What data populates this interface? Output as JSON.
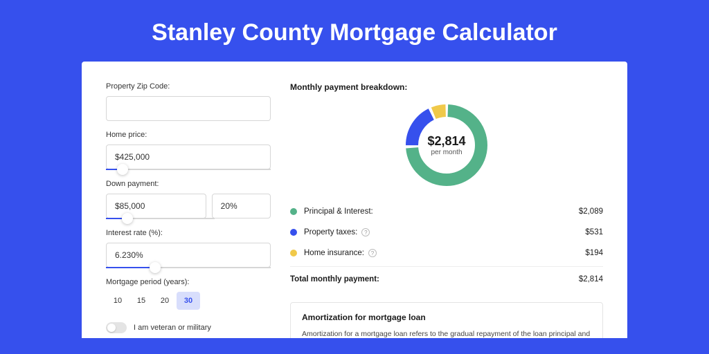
{
  "page": {
    "title": "Stanley County Mortgage Calculator",
    "background_color": "#3650ed"
  },
  "form": {
    "zip_label": "Property Zip Code:",
    "zip_value": "",
    "home_price_label": "Home price:",
    "home_price_value": "$425,000",
    "home_price_slider_pct": 10,
    "down_payment_label": "Down payment:",
    "down_payment_value": "$85,000",
    "down_payment_pct_value": "20%",
    "down_payment_slider_pct": 20,
    "interest_label": "Interest rate (%):",
    "interest_value": "6.230%",
    "interest_slider_pct": 30,
    "period_label": "Mortgage period (years):",
    "periods": [
      "10",
      "15",
      "20",
      "30"
    ],
    "period_selected": "30",
    "veteran_label": "I am veteran or military",
    "veteran_on": false
  },
  "breakdown": {
    "title": "Monthly payment breakdown:",
    "center_amount": "$2,814",
    "center_sub": "per month",
    "segments": [
      {
        "key": "principal",
        "label": "Principal & Interest:",
        "value": "$2,089",
        "numeric": 2089,
        "color": "#54b289",
        "info": false
      },
      {
        "key": "taxes",
        "label": "Property taxes:",
        "value": "$531",
        "numeric": 531,
        "color": "#3650ed",
        "info": true
      },
      {
        "key": "insurance",
        "label": "Home insurance:",
        "value": "$194",
        "numeric": 194,
        "color": "#f0c94a",
        "info": true
      }
    ],
    "total_label": "Total monthly payment:",
    "total_value": "$2,814",
    "donut_stroke_width": 18,
    "donut_bg": "#ffffff"
  },
  "amortization": {
    "title": "Amortization for mortgage loan",
    "text": "Amortization for a mortgage loan refers to the gradual repayment of the loan principal and interest over a specified"
  }
}
